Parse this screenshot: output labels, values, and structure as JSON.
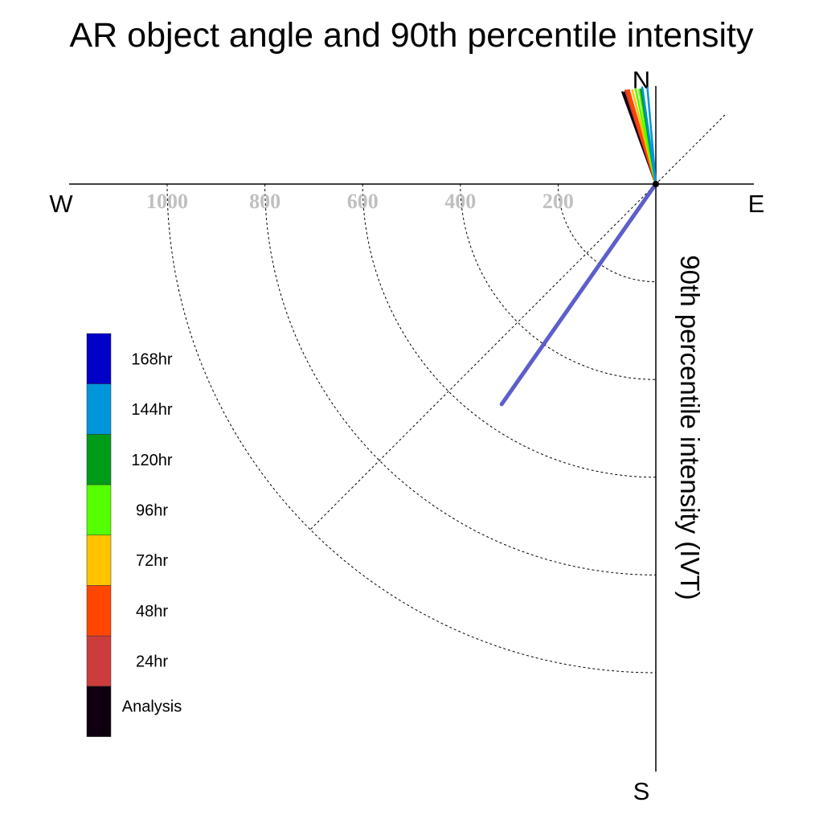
{
  "chart_data": {
    "type": "polar-vector",
    "title": "AR object angle and 90th percentile intensity",
    "axis_label": "90th percentile intensity (IVT)",
    "compass": {
      "north": "N",
      "south": "S",
      "east": "E",
      "west": "W"
    },
    "radial_ticks": [
      200,
      400,
      600,
      800,
      1000
    ],
    "radial_tick_labels": [
      "200",
      "400",
      "600",
      "800",
      "1000"
    ],
    "rmax": 1200,
    "legend": {
      "items": [
        {
          "label": "168hr",
          "color": "#0000c8"
        },
        {
          "label": "144hr",
          "color": "#0096dc"
        },
        {
          "label": "120hr",
          "color": "#009b19"
        },
        {
          "label": "96hr",
          "color": "#55ff00"
        },
        {
          "label": "72hr",
          "color": "#ffc300"
        },
        {
          "label": "48hr",
          "color": "#ff4600"
        },
        {
          "label": "24hr",
          "color": "#cd3c3c"
        },
        {
          "label": "Analysis",
          "color": "#0f000f"
        }
      ]
    },
    "series": [
      {
        "color": "#0f000f",
        "vectors": [
          {
            "angle_deg": 340,
            "intensity": 200
          },
          {
            "angle_deg": 341,
            "intensity": 198
          },
          {
            "angle_deg": 342,
            "intensity": 200
          }
        ]
      },
      {
        "color": "#cd3c3c",
        "vectors": [
          {
            "angle_deg": 342,
            "intensity": 201
          },
          {
            "angle_deg": 343,
            "intensity": 200
          }
        ]
      },
      {
        "color": "#ff4600",
        "vectors": [
          {
            "angle_deg": 343,
            "intensity": 200
          },
          {
            "angle_deg": 344,
            "intensity": 200
          }
        ]
      },
      {
        "color": "#ffc300",
        "vectors": [
          {
            "angle_deg": 346,
            "intensity": 198
          },
          {
            "angle_deg": 348,
            "intensity": 195
          }
        ]
      },
      {
        "color": "#55ff00",
        "vectors": [
          {
            "angle_deg": 348,
            "intensity": 199
          },
          {
            "angle_deg": 350,
            "intensity": 196
          }
        ]
      },
      {
        "color": "#009b19",
        "vectors": [
          {
            "angle_deg": 351,
            "intensity": 196
          },
          {
            "angle_deg": 352,
            "intensity": 193
          }
        ]
      },
      {
        "color": "#0096dc",
        "vectors": [
          {
            "angle_deg": 352,
            "intensity": 200
          },
          {
            "angle_deg": 355,
            "intensity": 197
          }
        ]
      },
      {
        "color": "#5555c8",
        "vectors": [
          {
            "angle_deg": 215,
            "intensity": 550
          }
        ]
      }
    ]
  }
}
